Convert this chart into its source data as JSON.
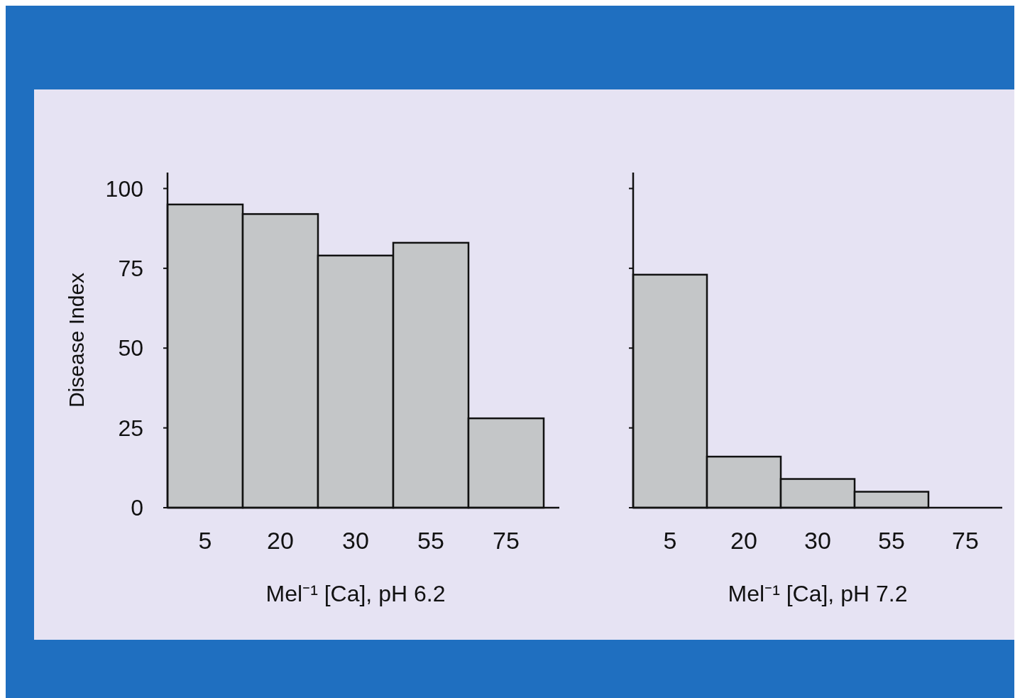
{
  "chart_data": [
    {
      "type": "bar",
      "xlabel": "Mel⁻¹ [Ca], pH 6.2",
      "ylabel": "Disease Index",
      "categories": [
        "5",
        "20",
        "30",
        "55",
        "75"
      ],
      "values": [
        95,
        92,
        79,
        83,
        28
      ],
      "color": "#c4c6c8",
      "ylim": [
        0,
        105
      ],
      "yticks": [
        0,
        25,
        50,
        75,
        100
      ],
      "grid": false
    },
    {
      "type": "bar",
      "xlabel": "Mel⁻¹ [Ca], pH 7.2",
      "categories": [
        "5",
        "20",
        "30",
        "55",
        "75"
      ],
      "values": [
        73,
        16,
        9,
        5,
        0
      ],
      "color": "#c4c6c8",
      "ylim": [
        0,
        105
      ],
      "yticks": [
        0,
        25,
        50,
        75,
        100
      ],
      "tick_labels": "x",
      "grid": false
    }
  ]
}
